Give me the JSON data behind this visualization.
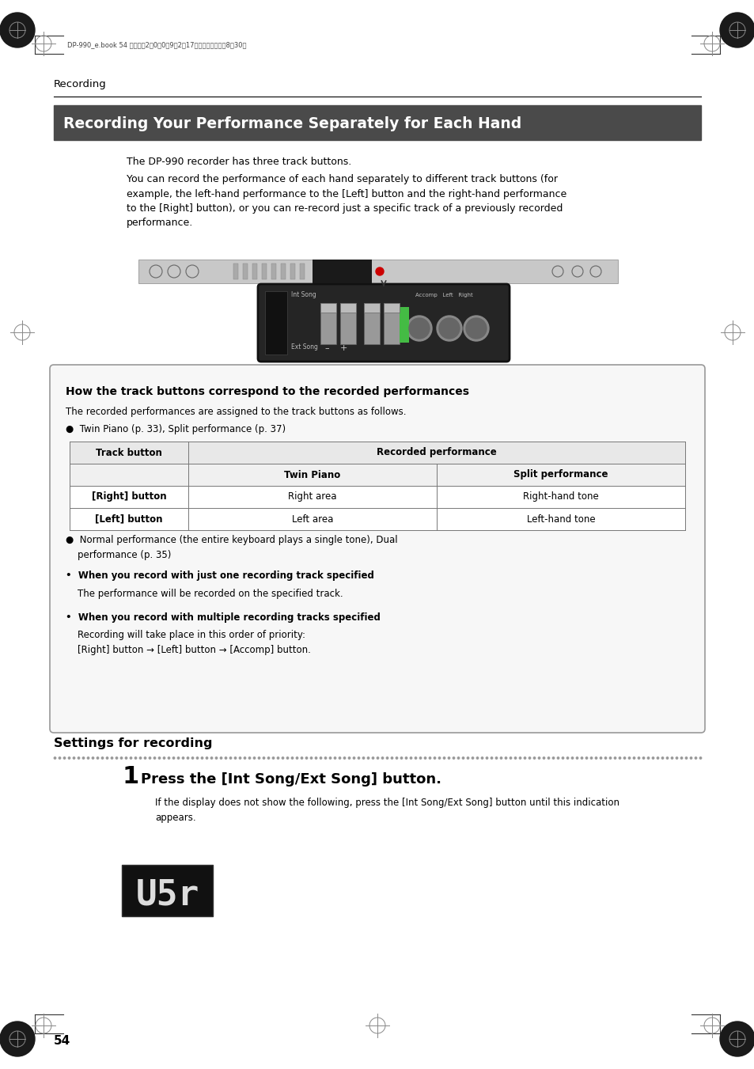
{
  "bg_color": "#ffffff",
  "page_header_text": "Recording",
  "section_title": "Recording Your Performance Separately for Each Hand",
  "section_title_bg": "#4a4a4a",
  "section_title_color": "#ffffff",
  "body_text1": "The DP-990 recorder has three track buttons.",
  "body_text2": "You can record the performance of each hand separately to different track buttons (for\nexample, the left-hand performance to the [Left] button and the right-hand performance\nto the [Right] button), or you can re-record just a specific track of a previously recorded\nperformance.",
  "box_title": "How the track buttons correspond to the recorded performances",
  "box_subtitle": "The recorded performances are assigned to the track buttons as follows.",
  "bullet1": "●  Twin Piano (p. 33), Split performance (p. 37)",
  "table_header_col1": "Track button",
  "table_header_col2": "Recorded performance",
  "table_sub_col2": "Twin Piano",
  "table_sub_col3": "Split performance",
  "table_row1_col1": "[Right] button",
  "table_row1_col2": "Right area",
  "table_row1_col3": "Right-hand tone",
  "table_row2_col1": "[Left] button",
  "table_row2_col2": "Left area",
  "table_row2_col3": "Left-hand tone",
  "bullet2": "●  Normal performance (the entire keyboard plays a single tone), Dual\n    performance (p. 35)",
  "bullet3_title": "•  When you record with just one recording track specified",
  "bullet3_body": "    The performance will be recorded on the specified track.",
  "bullet4_title": "•  When you record with multiple recording tracks specified",
  "bullet4_body": "    Recording will take place in this order of priority:\n    [Right] button → [Left] button → [Accomp] button.",
  "settings_title": "Settings for recording",
  "step1_num": "1",
  "step1_title": "Press the [Int Song/Ext Song] button.",
  "step1_body": "If the display does not show the following, press the [Int Song/Ext Song] button until this indication\nappears.",
  "page_number": "54",
  "top_text": "DP-990_e.book 54 ページ　2　0　0　9年2月17日　火曜日　午前8時30分"
}
